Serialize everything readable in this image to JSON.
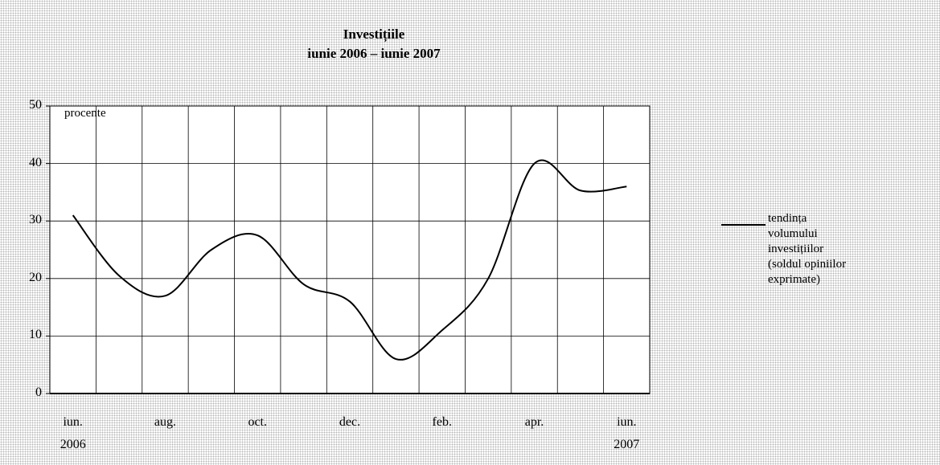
{
  "chart_data": {
    "type": "line",
    "title": "Investițiile",
    "subtitle": "iunie 2006 – iunie 2007",
    "y_label": "procente",
    "categories": [
      "iun.\n2006",
      null,
      "aug.",
      null,
      "oct.",
      null,
      "dec.",
      null,
      "feb.",
      null,
      "apr.",
      null,
      "iun.\n2007"
    ],
    "series": [
      {
        "name": "tendința volumului investițiilor (soldul opiniilor exprimate)",
        "color": "#000000",
        "values": [
          31,
          20.5,
          17,
          25,
          27.5,
          19,
          16,
          6,
          11,
          20,
          40,
          35.3,
          36
        ]
      }
    ],
    "ylim": [
      0,
      50
    ],
    "yticks": [
      0,
      10,
      20,
      30,
      40,
      50
    ],
    "grid": true,
    "legend": "right"
  }
}
